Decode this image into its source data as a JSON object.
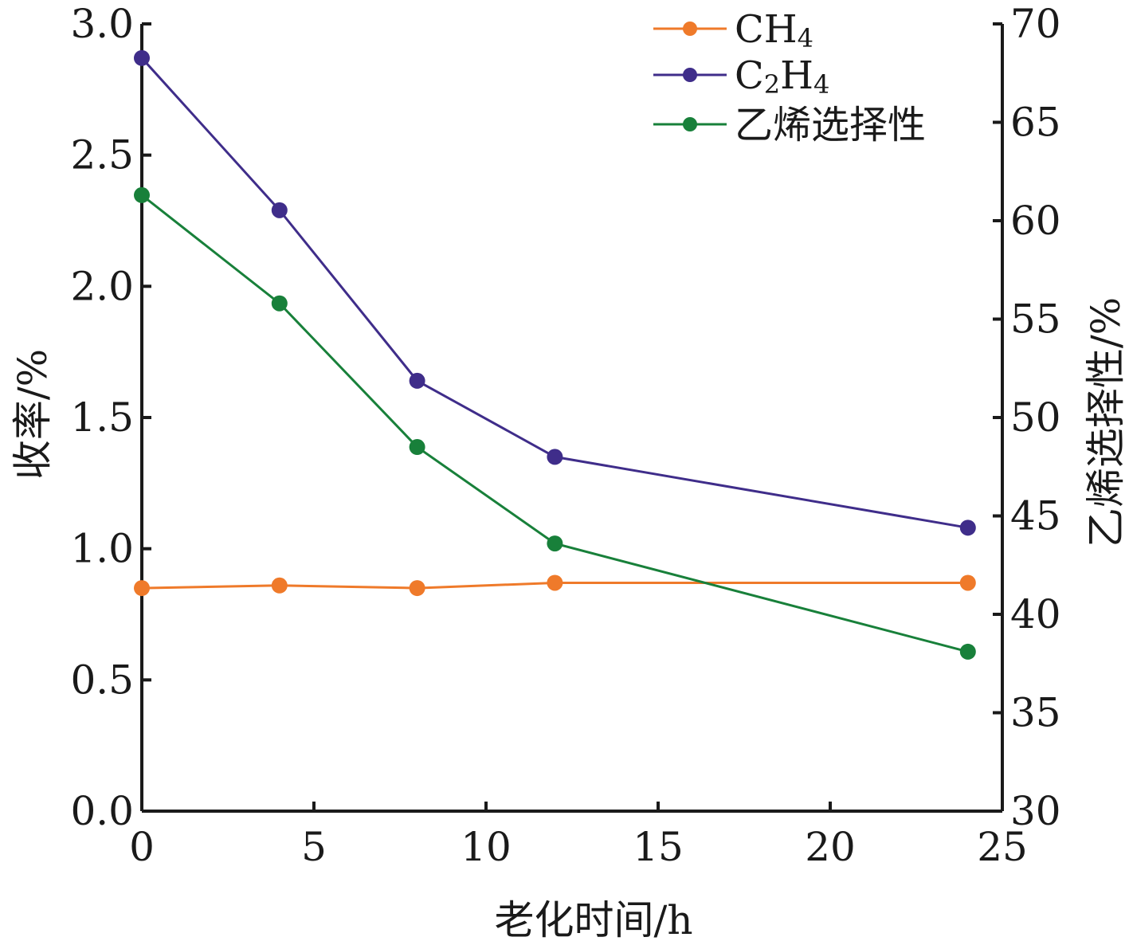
{
  "chart_data": {
    "type": "line",
    "x_axis": {
      "label": "老化时间/h",
      "range": [
        0,
        25
      ],
      "ticks": [
        "0",
        "5",
        "10",
        "15",
        "20",
        "25"
      ]
    },
    "y_axis_left": {
      "label": "收率/%",
      "range": [
        0,
        3.0
      ],
      "ticks": [
        "0.0",
        "0.5",
        "1.0",
        "1.5",
        "2.0",
        "2.5",
        "3.0"
      ]
    },
    "y_axis_right": {
      "label": "乙烯选择性/%",
      "range": [
        30,
        70
      ],
      "ticks": [
        "30",
        "35",
        "40",
        "45",
        "50",
        "55",
        "60",
        "65",
        "70"
      ]
    },
    "x": [
      0,
      4,
      8,
      12,
      24
    ],
    "series": [
      {
        "name": "CH4",
        "label_main": "CH",
        "label_sub": "4",
        "label_tail": "",
        "axis": "left",
        "color": "#ef7a2a",
        "values": [
          0.85,
          0.86,
          0.85,
          0.87,
          0.87
        ]
      },
      {
        "name": "C2H4",
        "label_main": "C",
        "label_sub": "2",
        "label_tail": "H4",
        "axis": "left",
        "color": "#3f2d8a",
        "values": [
          2.87,
          2.29,
          1.64,
          1.35,
          1.08
        ]
      },
      {
        "name": "乙烯选择性",
        "label_main": "乙烯选择性",
        "label_sub": "",
        "label_tail": "",
        "axis": "right",
        "color": "#18803a",
        "values": [
          61.3,
          55.8,
          48.5,
          43.6,
          38.1
        ]
      }
    ],
    "legend_position": "top-right",
    "grid": false
  }
}
